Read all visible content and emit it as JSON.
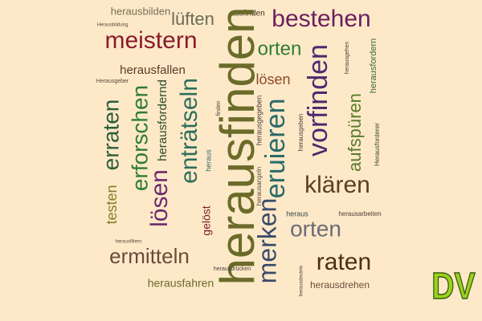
{
  "words": [
    "herausbilden",
    "lüften",
    "ausfinden",
    "bestehen",
    "Herausbildung",
    "meistern",
    "herausfallen",
    "Herausgeber",
    "orten",
    "herausgehen",
    "herausfordern",
    "lösen",
    "vorfinden",
    "erraten",
    "erforschen",
    "herausfordernd",
    "enträtseln",
    "finden",
    "herausfinden",
    "herausgegeben",
    "eruieren",
    "herausgeben",
    "aufspüren",
    "Herausforderer",
    "heraus",
    "herausangeln",
    "klären",
    "testen",
    "lösen",
    "gelöst",
    "heraus",
    "herausarbeiten",
    "merken",
    "orten",
    "herausfiltern",
    "ermitteln",
    "raten",
    "herausdrücken",
    "herausfahren",
    "herausdrehen",
    "herausdeuteln"
  ],
  "logo": "DV"
}
